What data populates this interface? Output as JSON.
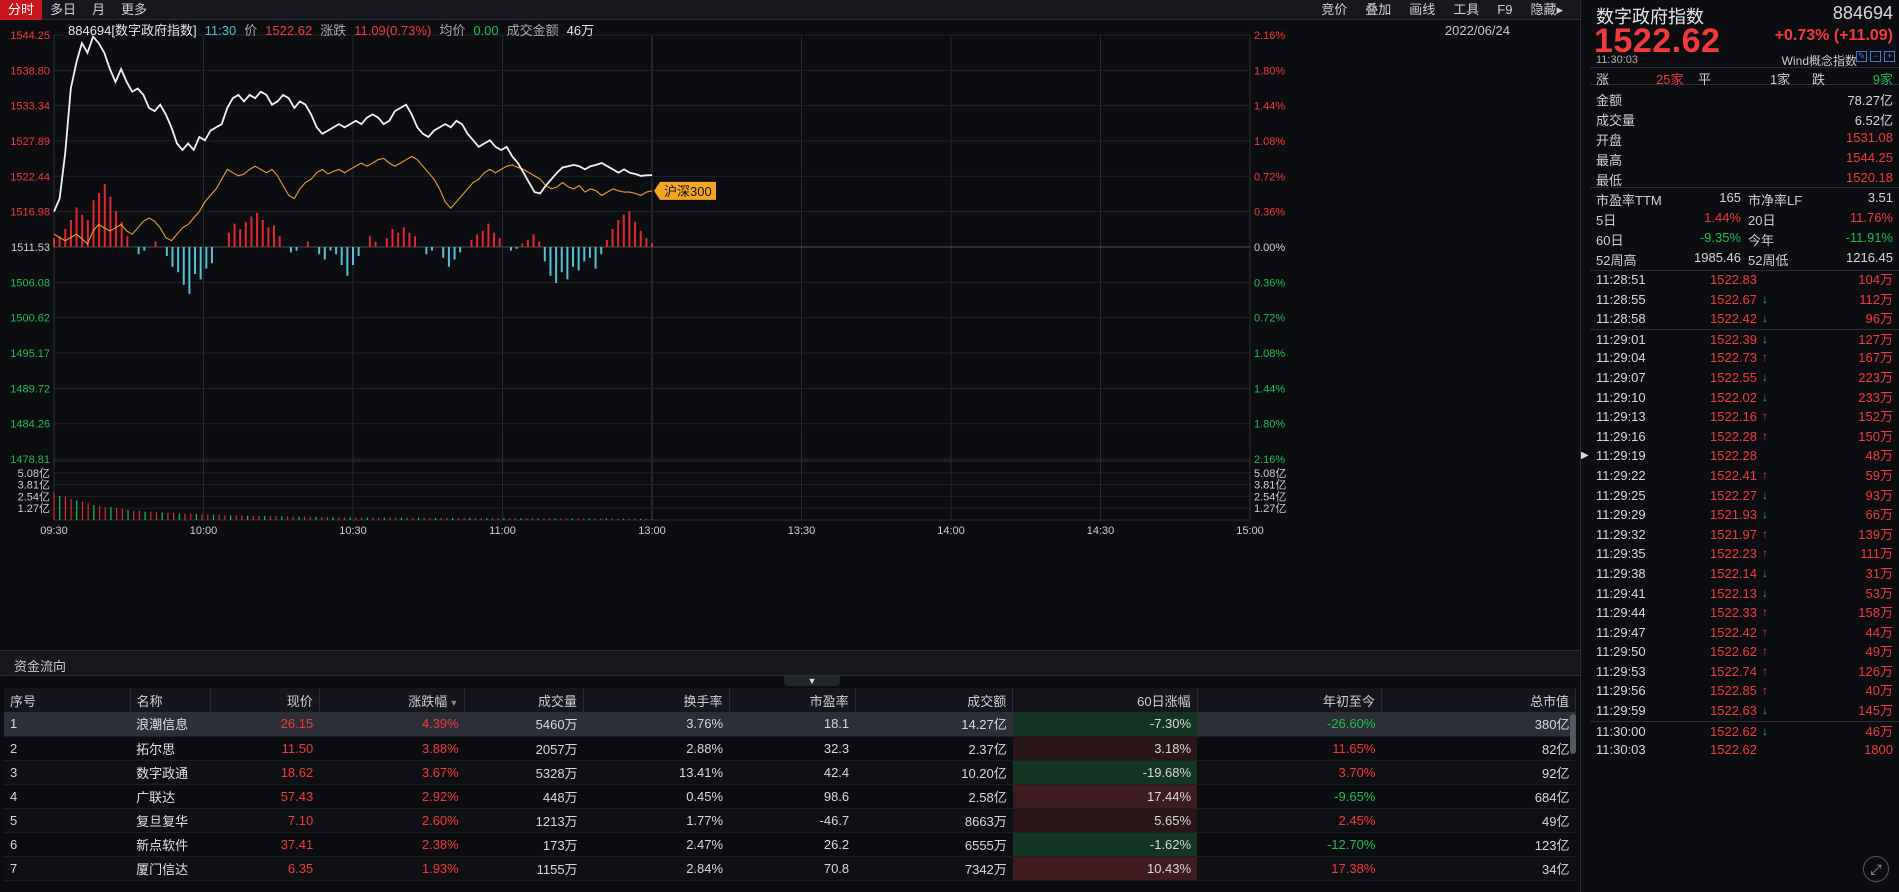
{
  "toolbar": {
    "left_tabs": [
      "分时",
      "多日",
      "月",
      "更多"
    ],
    "right_tools": [
      "竞价",
      "叠加",
      "画线",
      "工具",
      "F9",
      "隐藏▸"
    ]
  },
  "chart_info": {
    "code_name": "884694[数字政府指数]",
    "time": "11:30",
    "price_label": "价",
    "price": "1522.62",
    "change_label": "涨跌",
    "change": "11.09(0.73%)",
    "avg_label": "均价",
    "avg": "0.00",
    "amount_label": "成交金额",
    "amount": "46万",
    "date": "2022/06/24"
  },
  "chart_data": {
    "type": "line",
    "left_ticks": [
      "1544.25",
      "1538.80",
      "1533.34",
      "1527.89",
      "1522.44",
      "1516.98",
      "1511.53",
      "1506.08",
      "1500.62",
      "1495.17",
      "1489.72",
      "1484.26",
      "1478.81"
    ],
    "right_ticks": [
      "2.16%",
      "1.80%",
      "1.44%",
      "1.08%",
      "0.72%",
      "0.36%",
      "0.00%",
      "0.36%",
      "0.72%",
      "1.08%",
      "1.44%",
      "1.80%",
      "2.16%"
    ],
    "volume_ticks": [
      "5.08亿",
      "3.81亿",
      "2.54亿",
      "1.27亿"
    ],
    "x_ticks": [
      "09:30",
      "10:00",
      "10:30",
      "11:00",
      "13:00",
      "13:30",
      "14:00",
      "14:30",
      "15:00"
    ],
    "base": 1511.53,
    "ylim": [
      1478.81,
      1544.25
    ],
    "index_series": [
      1517.0,
      1519.0,
      1526.0,
      1536.0,
      1540.0,
      1543.0,
      1541.5,
      1544.0,
      1543.0,
      1541.5,
      1539.0,
      1537.0,
      1539.0,
      1537.0,
      1535.5,
      1536.0,
      1535.0,
      1533.0,
      1532.5,
      1533.5,
      1532.0,
      1530.0,
      1527.5,
      1526.5,
      1527.5,
      1526.5,
      1528.5,
      1528.0,
      1529.5,
      1530.0,
      1530.5,
      1533.0,
      1534.5,
      1535.0,
      1534.0,
      1535.0,
      1534.5,
      1535.5,
      1535.0,
      1533.5,
      1534.0,
      1535.0,
      1534.5,
      1533.0,
      1534.0,
      1533.5,
      1532.0,
      1530.0,
      1529.0,
      1529.5,
      1530.0,
      1530.5,
      1530.0,
      1530.5,
      1531.0,
      1530.5,
      1531.5,
      1532.0,
      1531.5,
      1530.5,
      1531.0,
      1532.5,
      1533.0,
      1533.5,
      1532.0,
      1530.0,
      1529.0,
      1528.5,
      1529.5,
      1530.0,
      1530.5,
      1530.0,
      1531.0,
      1530.5,
      1529.0,
      1528.0,
      1527.0,
      1527.5,
      1528.0,
      1527.0,
      1526.5,
      1527.0,
      1525.5,
      1524.5,
      1523.0,
      1521.5,
      1520.0,
      1519.8,
      1521.0,
      1522.0,
      1523.0,
      1523.8,
      1524.0,
      1524.2,
      1524.0,
      1523.5,
      1524.0,
      1524.2,
      1524.5,
      1524.0,
      1523.5,
      1523.0,
      1523.5,
      1523.0,
      1522.8,
      1522.5,
      1522.6,
      1522.62
    ],
    "hs300_series": [
      1513.5,
      1513.0,
      1512.5,
      1513.0,
      1513.5,
      1512.8,
      1512.0,
      1514.0,
      1515.0,
      1514.5,
      1514.0,
      1514.5,
      1515.0,
      1514.0,
      1513.5,
      1514.5,
      1515.5,
      1516.0,
      1515.5,
      1514.5,
      1513.0,
      1512.5,
      1513.5,
      1514.5,
      1515.0,
      1516.0,
      1517.0,
      1518.5,
      1519.5,
      1520.5,
      1522.0,
      1523.5,
      1523.0,
      1522.5,
      1522.8,
      1523.5,
      1524.0,
      1523.5,
      1523.0,
      1523.5,
      1522.5,
      1521.0,
      1519.5,
      1519.0,
      1520.5,
      1521.5,
      1522.0,
      1523.0,
      1523.5,
      1522.8,
      1523.2,
      1523.5,
      1523.0,
      1523.5,
      1524.0,
      1524.5,
      1524.0,
      1524.5,
      1525.0,
      1525.2,
      1524.5,
      1524.0,
      1524.5,
      1525.0,
      1525.5,
      1525.0,
      1524.0,
      1523.0,
      1522.0,
      1520.5,
      1518.5,
      1517.5,
      1518.5,
      1519.5,
      1520.5,
      1521.5,
      1522.0,
      1523.0,
      1523.5,
      1523.0,
      1523.5,
      1524.0,
      1524.2,
      1523.8,
      1523.5,
      1523.0,
      1522.5,
      1522.0,
      1521.0,
      1520.5,
      1520.8,
      1521.5,
      1520.8,
      1520.5,
      1521.0,
      1520.0,
      1520.5,
      1520.2,
      1519.5,
      1520.0,
      1520.5,
      1520.2,
      1520.0,
      1520.0,
      1519.8,
      1519.5,
      1520.0,
      1520.2
    ],
    "overlay_label": "沪深300",
    "diff_bars": [
      0.5,
      0.6,
      1,
      1.5,
      2.2,
      1.8,
      1.5,
      2.6,
      3.0,
      3.5,
      2.8,
      2.0,
      1.4,
      0.6,
      0,
      -0.4,
      -0.2,
      0,
      0.3,
      0,
      -0.5,
      -1.1,
      -1.4,
      -2.1,
      -2.6,
      -1.5,
      -1.8,
      -1.2,
      -0.9,
      0,
      0,
      0.8,
      1.3,
      1.0,
      1.4,
      1.7,
      1.9,
      1.5,
      1.1,
      1.2,
      0.6,
      0,
      -0.3,
      -0.2,
      0,
      0.3,
      0,
      -0.4,
      -0.7,
      -0.2,
      -0.4,
      -1.0,
      -1.6,
      -1.0,
      -0.5,
      0,
      0.6,
      0.3,
      0,
      0.5,
      1.0,
      0.8,
      1.1,
      0.8,
      0.6,
      0,
      -0.4,
      -0.2,
      0,
      -0.6,
      -1.1,
      -0.7,
      -0.3,
      0,
      0.4,
      0.7,
      0.9,
      1.3,
      0.8,
      0.5,
      0,
      -0.2,
      -0.1,
      0.2,
      0.4,
      0.7,
      0.3,
      -0.8,
      -1.6,
      -2.0,
      -1.4,
      -1.8,
      -1.1,
      -1.3,
      -0.8,
      -0.6,
      -1.2,
      -0.4,
      0.4,
      1.0,
      1.5,
      1.8,
      2.0,
      1.4,
      0.9,
      0.5,
      0.2
    ],
    "volume_bars": [
      3.0,
      2.6,
      2.5,
      2.3,
      2.1,
      2.0,
      1.8,
      1.6,
      1.5,
      1.4,
      1.4,
      1.3,
      1.2,
      1.1,
      1.0,
      1.0,
      0.9,
      0.9,
      0.85,
      0.8,
      0.8,
      0.75,
      0.7,
      0.7,
      0.65,
      0.65,
      0.6,
      0.6,
      0.55,
      0.55,
      0.5,
      0.5,
      0.5,
      0.48,
      0.46,
      0.45,
      0.44,
      0.43,
      0.42,
      0.4,
      0.4,
      0.38,
      0.37,
      0.36,
      0.35,
      0.35,
      0.34,
      0.33,
      0.32,
      0.32,
      0.31,
      0.3,
      0.3,
      0.3,
      0.29,
      0.28,
      0.28,
      0.27,
      0.27,
      0.26,
      0.26,
      0.25,
      0.25,
      0.25,
      0.24,
      0.24,
      0.24,
      0.23,
      0.23,
      0.23,
      0.22,
      0.22,
      0.22,
      0.22,
      0.21,
      0.21,
      0.21,
      0.2,
      0.2,
      0.2,
      0.2,
      0.19,
      0.19,
      0.19,
      0.19,
      0.18,
      0.18,
      0.18,
      0.18,
      0.17,
      0.17,
      0.17,
      0.17,
      0.17,
      0.16,
      0.16,
      0.16,
      0.16,
      0.16,
      0.15,
      0.15,
      0.15,
      0.15,
      0.15,
      0.15,
      0.12
    ]
  },
  "funds": {
    "title": "资金流向",
    "columns": [
      "序号",
      "名称",
      "现价",
      "涨跌幅",
      "成交量",
      "换手率",
      "市盈率",
      "成交额",
      "60日涨幅",
      "年初至今",
      "总市值"
    ],
    "sort_marker": "▼",
    "rows": [
      [
        "1",
        "浪潮信息",
        "26.15",
        "4.39%",
        "5460万",
        "3.76%",
        "18.1",
        "14.27亿",
        "-7.30%",
        "-26.60%",
        "380亿"
      ],
      [
        "2",
        "拓尔思",
        "11.50",
        "3.88%",
        "2057万",
        "2.88%",
        "32.3",
        "2.37亿",
        "3.18%",
        "11.65%",
        "82亿"
      ],
      [
        "3",
        "数字政通",
        "18.62",
        "3.67%",
        "5328万",
        "13.41%",
        "42.4",
        "10.20亿",
        "-19.68%",
        "3.70%",
        "92亿"
      ],
      [
        "4",
        "广联达",
        "57.43",
        "2.92%",
        "448万",
        "0.45%",
        "98.6",
        "2.58亿",
        "17.44%",
        "-9.65%",
        "684亿"
      ],
      [
        "5",
        "复旦复华",
        "7.10",
        "2.60%",
        "1213万",
        "1.77%",
        "-46.7",
        "8663万",
        "5.65%",
        "2.45%",
        "49亿"
      ],
      [
        "6",
        "新点软件",
        "37.41",
        "2.38%",
        "173万",
        "2.47%",
        "26.2",
        "6555万",
        "-1.62%",
        "-12.70%",
        "123亿"
      ],
      [
        "7",
        "厦门信达",
        "6.35",
        "1.93%",
        "1155万",
        "2.84%",
        "70.8",
        "7342万",
        "10.43%",
        "17.38%",
        "34亿"
      ]
    ]
  },
  "panel": {
    "name": "数字政府指数",
    "code": "884694",
    "price": "1522.62",
    "change": "+0.73% (+11.09)",
    "time": "11:30:03",
    "concept": "Wind概念指数",
    "breadth": {
      "up_label": "涨",
      "up": "25家",
      "flat_label": "平",
      "flat": "1家",
      "down_label": "跌",
      "down": "9家"
    },
    "stats": [
      {
        "k": "金额",
        "v": "78.27亿",
        "c": "#d8d8d8"
      },
      {
        "k": "成交量",
        "v": "6.52亿",
        "c": "#d8d8d8"
      },
      {
        "k": "开盘",
        "v": "1531.08",
        "c": "#f2393b"
      },
      {
        "k": "最高",
        "v": "1544.25",
        "c": "#f2393b"
      },
      {
        "k": "最低",
        "v": "1520.18",
        "c": "#f2393b"
      }
    ],
    "stats2": [
      {
        "k": "市盈率TTM",
        "v": "165",
        "k2": "市净率LF",
        "v2": "3.51",
        "c": "#d8d8d8",
        "c2": "#d8d8d8"
      },
      {
        "k": "5日",
        "v": "1.44%",
        "k2": "20日",
        "v2": "11.76%",
        "c": "#f2393b",
        "c2": "#f2393b"
      },
      {
        "k": "60日",
        "v": "-9.35%",
        "k2": "今年",
        "v2": "-11.91%",
        "c": "#1bbf50",
        "c2": "#1bbf50"
      },
      {
        "k": "52周高",
        "v": "1985.46",
        "k2": "52周低",
        "v2": "1216.45",
        "c": "#d8d8d8",
        "c2": "#d8d8d8"
      }
    ],
    "ticks": [
      {
        "t": "11:28:51",
        "p": "1522.83",
        "a": "",
        "v": "104万"
      },
      {
        "t": "11:28:55",
        "p": "1522.67",
        "a": "down",
        "v": "112万"
      },
      {
        "t": "11:28:58",
        "p": "1522.42",
        "a": "down",
        "v": "96万"
      },
      {
        "t": "11:29:01",
        "p": "1522.39",
        "a": "down",
        "v": "127万"
      },
      {
        "t": "11:29:04",
        "p": "1522.73",
        "a": "up",
        "v": "167万"
      },
      {
        "t": "11:29:07",
        "p": "1522.55",
        "a": "down",
        "v": "223万"
      },
      {
        "t": "11:29:10",
        "p": "1522.02",
        "a": "down",
        "v": "233万"
      },
      {
        "t": "11:29:13",
        "p": "1522.16",
        "a": "up",
        "v": "152万"
      },
      {
        "t": "11:29:16",
        "p": "1522.28",
        "a": "up",
        "v": "150万"
      },
      {
        "t": "11:29:19",
        "p": "1522.28",
        "a": "",
        "v": "48万"
      },
      {
        "t": "11:29:22",
        "p": "1522.41",
        "a": "up",
        "v": "59万"
      },
      {
        "t": "11:29:25",
        "p": "1522.27",
        "a": "down",
        "v": "93万"
      },
      {
        "t": "11:29:29",
        "p": "1521.93",
        "a": "down",
        "v": "66万"
      },
      {
        "t": "11:29:32",
        "p": "1521.97",
        "a": "up",
        "v": "139万"
      },
      {
        "t": "11:29:35",
        "p": "1522.23",
        "a": "up",
        "v": "111万"
      },
      {
        "t": "11:29:38",
        "p": "1522.14",
        "a": "down",
        "v": "31万"
      },
      {
        "t": "11:29:41",
        "p": "1522.13",
        "a": "down",
        "v": "53万"
      },
      {
        "t": "11:29:44",
        "p": "1522.33",
        "a": "up",
        "v": "158万"
      },
      {
        "t": "11:29:47",
        "p": "1522.42",
        "a": "up",
        "v": "44万"
      },
      {
        "t": "11:29:50",
        "p": "1522.62",
        "a": "up",
        "v": "49万"
      },
      {
        "t": "11:29:53",
        "p": "1522.74",
        "a": "up",
        "v": "126万"
      },
      {
        "t": "11:29:56",
        "p": "1522.85",
        "a": "up",
        "v": "40万"
      },
      {
        "t": "11:29:59",
        "p": "1522.63",
        "a": "down",
        "v": "145万"
      },
      {
        "t": "11:30:00",
        "p": "1522.62",
        "a": "down",
        "v": "46万"
      },
      {
        "t": "11:30:03",
        "p": "1522.62",
        "a": "",
        "v": "1800"
      }
    ]
  },
  "icons": {
    "expand": "expand-icon",
    "splitter": "collapse-right-icon"
  }
}
